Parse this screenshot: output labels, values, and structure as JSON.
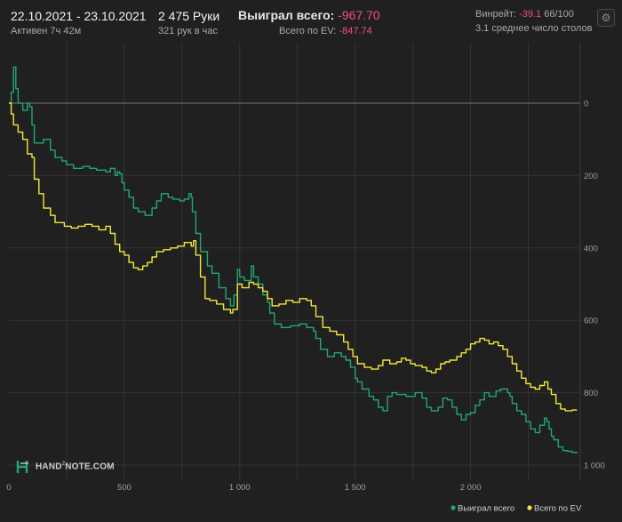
{
  "header": {
    "date_range": "22.10.2021 - 23.10.2021",
    "active": "Активен 7ч 42м",
    "hands": "2 475 Руки",
    "hands_per_hour": "321 рук в час",
    "won_label": "Выиграл всего:",
    "won_value": "-967.70",
    "ev_label": "Всего по EV:",
    "ev_value": "-847.74",
    "winrate_label": "Винрейт:",
    "winrate_value": "-39.1",
    "winrate_extra": "66/100",
    "avg_tables": "3.1 среднее число столов"
  },
  "logo": {
    "text_a": "HAND",
    "text_sup": "2",
    "text_b": "NOTE.COM"
  },
  "icons": {
    "settings": "gear-icon",
    "logo": "hand2note-logo-icon"
  },
  "colors": {
    "background": "#202020",
    "won": "#1fa874",
    "ev": "#f2e83a",
    "negative": "#f0507a",
    "grid": "#333333",
    "zero_line": "#777777"
  },
  "chart_data": {
    "type": "line",
    "xlabel": "",
    "ylabel": "",
    "xlim": [
      0,
      2475
    ],
    "ylim": [
      -1000,
      100
    ],
    "x_ticks": [
      0,
      500,
      1000,
      1500,
      2000
    ],
    "x_tick_labels": [
      "0",
      "500",
      "1 000",
      "1 500",
      "2 000"
    ],
    "y_ticks": [
      0,
      -200,
      -400,
      -600,
      -800,
      -1000
    ],
    "y_tick_labels": [
      "0",
      "200",
      "400",
      "600",
      "800",
      "1 000"
    ],
    "grid": true,
    "legend_position": "bottom-right",
    "series": [
      {
        "name": "Выиграл всего",
        "color": "#1fa874",
        "points": [
          [
            0,
            0
          ],
          [
            10,
            30
          ],
          [
            20,
            100
          ],
          [
            30,
            40
          ],
          [
            40,
            0
          ],
          [
            60,
            -20
          ],
          [
            80,
            0
          ],
          [
            90,
            -10
          ],
          [
            100,
            -60
          ],
          [
            110,
            -110
          ],
          [
            150,
            -100
          ],
          [
            180,
            -130
          ],
          [
            200,
            -150
          ],
          [
            230,
            -160
          ],
          [
            250,
            -170
          ],
          [
            280,
            -180
          ],
          [
            320,
            -175
          ],
          [
            350,
            -180
          ],
          [
            380,
            -185
          ],
          [
            420,
            -190
          ],
          [
            440,
            -180
          ],
          [
            460,
            -200
          ],
          [
            470,
            -190
          ],
          [
            480,
            -195
          ],
          [
            490,
            -220
          ],
          [
            500,
            -240
          ],
          [
            520,
            -260
          ],
          [
            540,
            -290
          ],
          [
            560,
            -300
          ],
          [
            590,
            -310
          ],
          [
            620,
            -290
          ],
          [
            640,
            -270
          ],
          [
            660,
            -250
          ],
          [
            690,
            -260
          ],
          [
            710,
            -265
          ],
          [
            740,
            -270
          ],
          [
            760,
            -265
          ],
          [
            780,
            -250
          ],
          [
            790,
            -260
          ],
          [
            795,
            -300
          ],
          [
            810,
            -360
          ],
          [
            830,
            -410
          ],
          [
            860,
            -450
          ],
          [
            880,
            -470
          ],
          [
            910,
            -510
          ],
          [
            940,
            -540
          ],
          [
            960,
            -560
          ],
          [
            975,
            -530
          ],
          [
            990,
            -460
          ],
          [
            1000,
            -480
          ],
          [
            1020,
            -490
          ],
          [
            1050,
            -450
          ],
          [
            1060,
            -480
          ],
          [
            1080,
            -500
          ],
          [
            1100,
            -530
          ],
          [
            1120,
            -550
          ],
          [
            1130,
            -580
          ],
          [
            1150,
            -610
          ],
          [
            1180,
            -620
          ],
          [
            1220,
            -615
          ],
          [
            1260,
            -610
          ],
          [
            1290,
            -620
          ],
          [
            1320,
            -630
          ],
          [
            1330,
            -650
          ],
          [
            1350,
            -680
          ],
          [
            1380,
            -700
          ],
          [
            1410,
            -690
          ],
          [
            1440,
            -700
          ],
          [
            1460,
            -710
          ],
          [
            1480,
            -730
          ],
          [
            1500,
            -760
          ],
          [
            1510,
            -770
          ],
          [
            1530,
            -790
          ],
          [
            1560,
            -810
          ],
          [
            1580,
            -820
          ],
          [
            1600,
            -840
          ],
          [
            1620,
            -850
          ],
          [
            1640,
            -810
          ],
          [
            1660,
            -800
          ],
          [
            1680,
            -805
          ],
          [
            1720,
            -810
          ],
          [
            1760,
            -800
          ],
          [
            1790,
            -815
          ],
          [
            1810,
            -840
          ],
          [
            1830,
            -850
          ],
          [
            1860,
            -840
          ],
          [
            1880,
            -815
          ],
          [
            1900,
            -820
          ],
          [
            1920,
            -840
          ],
          [
            1940,
            -860
          ],
          [
            1960,
            -875
          ],
          [
            1980,
            -860
          ],
          [
            2000,
            -855
          ],
          [
            2020,
            -835
          ],
          [
            2040,
            -820
          ],
          [
            2060,
            -800
          ],
          [
            2080,
            -810
          ],
          [
            2110,
            -795
          ],
          [
            2130,
            -790
          ],
          [
            2160,
            -800
          ],
          [
            2170,
            -810
          ],
          [
            2180,
            -830
          ],
          [
            2200,
            -850
          ],
          [
            2220,
            -860
          ],
          [
            2240,
            -880
          ],
          [
            2260,
            -900
          ],
          [
            2280,
            -910
          ],
          [
            2300,
            -890
          ],
          [
            2320,
            -870
          ],
          [
            2330,
            -880
          ],
          [
            2340,
            -900
          ],
          [
            2350,
            -920
          ],
          [
            2360,
            -930
          ],
          [
            2380,
            -950
          ],
          [
            2400,
            -960
          ],
          [
            2420,
            -962
          ],
          [
            2440,
            -965
          ],
          [
            2460,
            -967.7
          ]
        ]
      },
      {
        "name": "Всего по EV",
        "color": "#f2e83a",
        "points": [
          [
            0,
            0
          ],
          [
            10,
            -30
          ],
          [
            20,
            -60
          ],
          [
            40,
            -80
          ],
          [
            60,
            -100
          ],
          [
            80,
            -140
          ],
          [
            100,
            -150
          ],
          [
            110,
            -210
          ],
          [
            130,
            -250
          ],
          [
            150,
            -290
          ],
          [
            180,
            -310
          ],
          [
            200,
            -330
          ],
          [
            240,
            -340
          ],
          [
            270,
            -345
          ],
          [
            300,
            -340
          ],
          [
            330,
            -335
          ],
          [
            360,
            -340
          ],
          [
            390,
            -350
          ],
          [
            420,
            -340
          ],
          [
            440,
            -360
          ],
          [
            460,
            -390
          ],
          [
            480,
            -410
          ],
          [
            500,
            -420
          ],
          [
            520,
            -440
          ],
          [
            540,
            -455
          ],
          [
            560,
            -460
          ],
          [
            580,
            -450
          ],
          [
            600,
            -440
          ],
          [
            620,
            -425
          ],
          [
            640,
            -410
          ],
          [
            670,
            -405
          ],
          [
            700,
            -400
          ],
          [
            730,
            -395
          ],
          [
            760,
            -385
          ],
          [
            790,
            -395
          ],
          [
            800,
            -380
          ],
          [
            810,
            -420
          ],
          [
            830,
            -480
          ],
          [
            850,
            -540
          ],
          [
            870,
            -545
          ],
          [
            900,
            -555
          ],
          [
            930,
            -570
          ],
          [
            960,
            -580
          ],
          [
            970,
            -570
          ],
          [
            990,
            -500
          ],
          [
            1010,
            -510
          ],
          [
            1040,
            -495
          ],
          [
            1060,
            -500
          ],
          [
            1080,
            -510
          ],
          [
            1100,
            -520
          ],
          [
            1120,
            -540
          ],
          [
            1140,
            -560
          ],
          [
            1170,
            -555
          ],
          [
            1200,
            -545
          ],
          [
            1230,
            -550
          ],
          [
            1260,
            -540
          ],
          [
            1290,
            -545
          ],
          [
            1310,
            -560
          ],
          [
            1330,
            -590
          ],
          [
            1360,
            -620
          ],
          [
            1390,
            -630
          ],
          [
            1420,
            -640
          ],
          [
            1450,
            -660
          ],
          [
            1470,
            -680
          ],
          [
            1490,
            -700
          ],
          [
            1510,
            -720
          ],
          [
            1540,
            -730
          ],
          [
            1570,
            -735
          ],
          [
            1600,
            -725
          ],
          [
            1620,
            -710
          ],
          [
            1650,
            -720
          ],
          [
            1680,
            -715
          ],
          [
            1700,
            -705
          ],
          [
            1720,
            -710
          ],
          [
            1740,
            -720
          ],
          [
            1760,
            -725
          ],
          [
            1790,
            -730
          ],
          [
            1810,
            -740
          ],
          [
            1830,
            -745
          ],
          [
            1850,
            -735
          ],
          [
            1870,
            -720
          ],
          [
            1890,
            -715
          ],
          [
            1910,
            -710
          ],
          [
            1940,
            -700
          ],
          [
            1960,
            -690
          ],
          [
            1980,
            -680
          ],
          [
            2000,
            -665
          ],
          [
            2020,
            -660
          ],
          [
            2040,
            -650
          ],
          [
            2060,
            -655
          ],
          [
            2080,
            -665
          ],
          [
            2100,
            -660
          ],
          [
            2120,
            -670
          ],
          [
            2140,
            -680
          ],
          [
            2160,
            -700
          ],
          [
            2180,
            -720
          ],
          [
            2200,
            -740
          ],
          [
            2220,
            -760
          ],
          [
            2240,
            -775
          ],
          [
            2260,
            -785
          ],
          [
            2280,
            -790
          ],
          [
            2300,
            -780
          ],
          [
            2320,
            -770
          ],
          [
            2335,
            -790
          ],
          [
            2350,
            -805
          ],
          [
            2370,
            -830
          ],
          [
            2390,
            -845
          ],
          [
            2410,
            -850
          ],
          [
            2440,
            -848
          ],
          [
            2460,
            -847.74
          ]
        ]
      }
    ]
  }
}
